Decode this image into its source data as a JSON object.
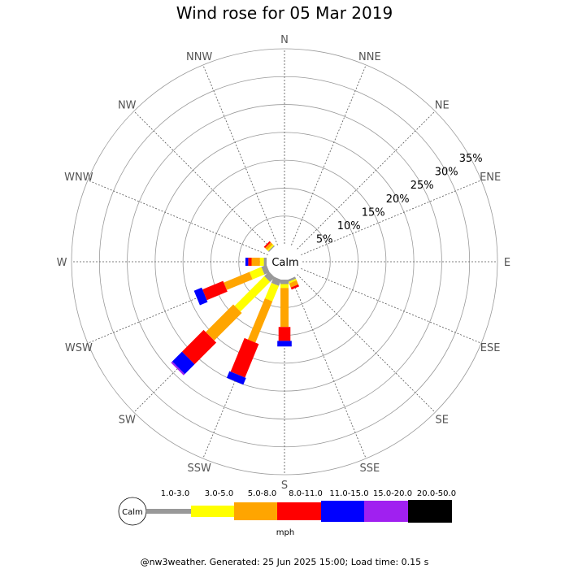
{
  "chart_data": {
    "type": "wind-rose",
    "title": "Wind rose for 05 Mar 2019",
    "directions": [
      "N",
      "NNE",
      "NE",
      "ENE",
      "E",
      "ESE",
      "SE",
      "SSE",
      "S",
      "SSW",
      "SW",
      "WSW",
      "W",
      "WNW",
      "NW",
      "NNW"
    ],
    "ring_labels": [
      "5%",
      "10%",
      "15%",
      "20%",
      "25%",
      "30%",
      "35%"
    ],
    "ring_values": [
      5,
      10,
      15,
      20,
      25,
      30,
      35
    ],
    "r_max": 35,
    "calm_label": "Calm",
    "speed_bins": [
      "1.0-3.0",
      "3.0-5.0",
      "5.0-8.0",
      "8.0-11.0",
      "11.0-15.0",
      "15.0-20.0",
      "20.0-50.0"
    ],
    "bin_colors": [
      "#999999",
      "#ffff00",
      "#ffa500",
      "#ff0000",
      "#0000ff",
      "#a020f0",
      "#000000"
    ],
    "unit": "mph",
    "series": [
      {
        "dir": "N",
        "values": [
          0,
          0,
          0,
          0,
          0,
          0,
          0
        ]
      },
      {
        "dir": "NNE",
        "values": [
          0,
          0,
          0,
          0,
          0,
          0,
          0
        ]
      },
      {
        "dir": "NE",
        "values": [
          0,
          0,
          0,
          0,
          0,
          0,
          0
        ]
      },
      {
        "dir": "ENE",
        "values": [
          0,
          0,
          0,
          0,
          0,
          0,
          0
        ]
      },
      {
        "dir": "E",
        "values": [
          0,
          0,
          0,
          0,
          0,
          0,
          0
        ]
      },
      {
        "dir": "ESE",
        "values": [
          0,
          0,
          0,
          0,
          0,
          0,
          0
        ]
      },
      {
        "dir": "SE",
        "values": [
          0,
          0,
          0,
          0,
          0,
          0,
          0
        ]
      },
      {
        "dir": "SSE",
        "values": [
          0.4,
          0.3,
          0.8,
          0.4,
          0,
          0,
          0
        ]
      },
      {
        "dir": "S",
        "values": [
          0.8,
          0.7,
          7.0,
          2.5,
          1.0,
          0,
          0
        ]
      },
      {
        "dir": "SSW",
        "values": [
          1.2,
          3.0,
          8.0,
          6.5,
          1.3,
          0,
          0
        ]
      },
      {
        "dir": "SW",
        "values": [
          1.2,
          7.5,
          7.0,
          5.5,
          2.5,
          0.3,
          0
        ]
      },
      {
        "dir": "WSW",
        "values": [
          1.0,
          2.3,
          5.0,
          4.0,
          1.5,
          0,
          0
        ]
      },
      {
        "dir": "W",
        "values": [
          0.5,
          0.7,
          1.5,
          0.6,
          0.5,
          0,
          0
        ]
      },
      {
        "dir": "WNW",
        "values": [
          0,
          0,
          0,
          0,
          0,
          0,
          0
        ]
      },
      {
        "dir": "NW",
        "values": [
          0.2,
          0.3,
          0.5,
          0.3,
          0,
          0,
          0
        ]
      },
      {
        "dir": "NNW",
        "values": [
          0,
          0,
          0,
          0,
          0,
          0,
          0
        ]
      }
    ]
  },
  "footer": "@nw3weather. Generated: 25 Jun 2025 15:00; Load time: 0.15 s"
}
